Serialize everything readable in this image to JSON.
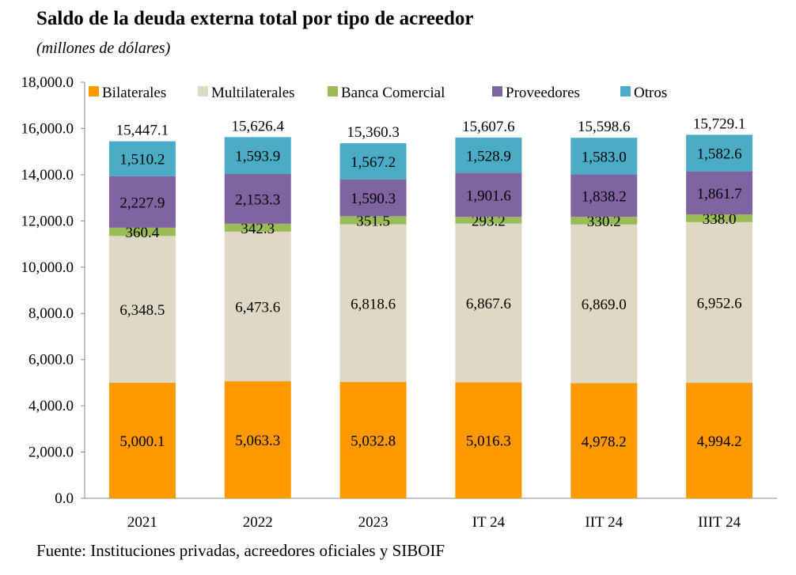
{
  "header": {
    "title": "Saldo de la deuda externa total por tipo de acreedor",
    "subtitle": "(millones de dólares)"
  },
  "footer": {
    "source": "Fuente: Instituciones privadas, acreedores oficiales y SIBOIF"
  },
  "chart_data": {
    "type": "bar",
    "stacked": true,
    "categories": [
      "2021",
      "2022",
      "2023",
      "IT 24",
      "IIT 24",
      "IIIT 24"
    ],
    "series": [
      {
        "name": "Bilaterales",
        "color": "#FF9900",
        "values": [
          5000.1,
          5063.3,
          5032.8,
          5016.3,
          4978.2,
          4994.2
        ],
        "labels": [
          "5,000.1",
          "5,063.3",
          "5,032.8",
          "5,016.3",
          "4,978.2",
          "4,994.2"
        ]
      },
      {
        "name": "Multilaterales",
        "color": "#DDD9C4",
        "values": [
          6348.5,
          6473.6,
          6818.6,
          6867.6,
          6869.0,
          6952.6
        ],
        "labels": [
          "6,348.5",
          "6,473.6",
          "6,818.6",
          "6,867.6",
          "6,869.0",
          "6,952.6"
        ]
      },
      {
        "name": "Banca Comercial",
        "color": "#9BBB59",
        "values": [
          360.4,
          342.3,
          351.5,
          293.2,
          330.2,
          338.0
        ],
        "labels": [
          "360.4",
          "342.3",
          "351.5",
          "293.2",
          "330.2",
          "338.0"
        ]
      },
      {
        "name": "Proveedores",
        "color": "#8064A2",
        "values": [
          2227.9,
          2153.3,
          1590.3,
          1901.6,
          1838.2,
          1861.7
        ],
        "labels": [
          "2,227.9",
          "2,153.3",
          "1,590.3",
          "1,901.6",
          "1,838.2",
          "1,861.7"
        ]
      },
      {
        "name": "Otros",
        "color": "#4BACC6",
        "values": [
          1510.2,
          1593.9,
          1567.2,
          1528.9,
          1583.0,
          1582.6
        ],
        "labels": [
          "1,510.2",
          "1,593.9",
          "1,567.2",
          "1,528.9",
          "1,583.0",
          "1,582.6"
        ]
      }
    ],
    "totals": [
      15447.1,
      15626.4,
      15360.3,
      15607.6,
      15598.6,
      15729.1
    ],
    "total_labels": [
      "15,447.1",
      "15,626.4",
      "15,360.3",
      "15,607.6",
      "15,598.6",
      "15,729.1"
    ],
    "ylim": [
      0,
      18000
    ],
    "y_ticks": [
      0,
      2000,
      4000,
      6000,
      8000,
      10000,
      12000,
      14000,
      16000,
      18000
    ],
    "y_tick_labels": [
      "0.0",
      "2,000.0",
      "4,000.0",
      "6,000.0",
      "8,000.0",
      "10,000.0",
      "12,000.0",
      "14,000.0",
      "16,000.0",
      "18,000.0"
    ],
    "grid": false,
    "legend_position": "top"
  }
}
